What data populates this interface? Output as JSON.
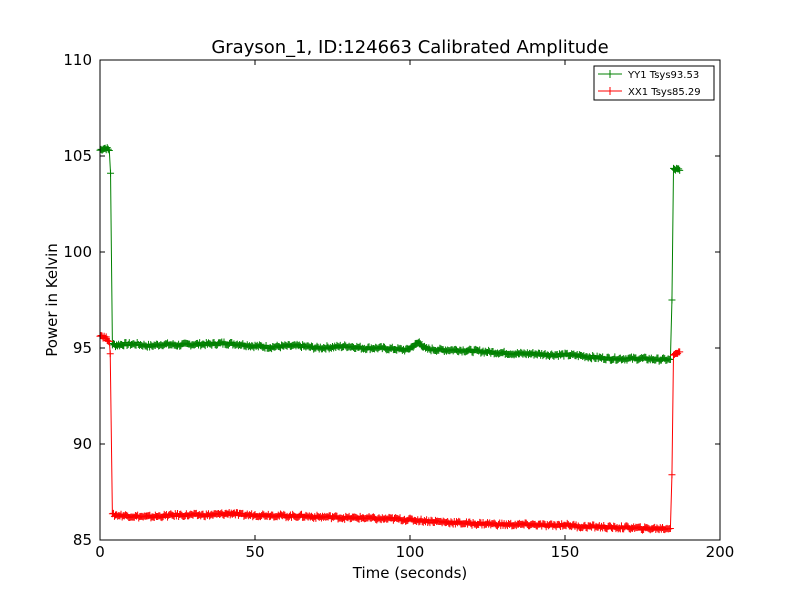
{
  "chart_data": {
    "type": "line",
    "title": "Grayson_1, ID:124663 Calibrated Amplitude",
    "xlabel": "Time (seconds)",
    "ylabel": "Power in Kelvin",
    "xlim": [
      0,
      200
    ],
    "ylim": [
      85,
      110
    ],
    "xticks": [
      0,
      50,
      100,
      150,
      200
    ],
    "yticks": [
      85,
      90,
      95,
      100,
      105,
      110
    ],
    "grid": false,
    "legend_position": "top-right",
    "marker": "plus",
    "series": [
      {
        "name": "YY1 Tsys93.53",
        "color": "#008000",
        "points": [
          [
            0,
            105.3
          ],
          [
            1,
            105.4
          ],
          [
            2,
            105.4
          ],
          [
            3,
            105.3
          ],
          [
            3.4,
            104.1
          ],
          [
            4,
            95.2
          ],
          [
            5,
            95.15
          ],
          [
            8,
            95.2
          ],
          [
            12,
            95.2
          ],
          [
            16,
            95.1
          ],
          [
            20,
            95.2
          ],
          [
            25,
            95.15
          ],
          [
            30,
            95.2
          ],
          [
            35,
            95.2
          ],
          [
            40,
            95.25
          ],
          [
            45,
            95.2
          ],
          [
            50,
            95.1
          ],
          [
            55,
            95.05
          ],
          [
            60,
            95.1
          ],
          [
            65,
            95.1
          ],
          [
            70,
            95.0
          ],
          [
            75,
            95.05
          ],
          [
            80,
            95.1
          ],
          [
            85,
            95.0
          ],
          [
            90,
            95.0
          ],
          [
            95,
            94.95
          ],
          [
            99,
            94.9
          ],
          [
            102,
            95.2
          ],
          [
            103,
            95.3
          ],
          [
            105,
            94.95
          ],
          [
            110,
            94.9
          ],
          [
            115,
            94.9
          ],
          [
            120,
            94.85
          ],
          [
            125,
            94.8
          ],
          [
            130,
            94.75
          ],
          [
            135,
            94.7
          ],
          [
            140,
            94.7
          ],
          [
            145,
            94.65
          ],
          [
            150,
            94.65
          ],
          [
            155,
            94.6
          ],
          [
            160,
            94.5
          ],
          [
            165,
            94.45
          ],
          [
            170,
            94.45
          ],
          [
            175,
            94.45
          ],
          [
            180,
            94.4
          ],
          [
            184,
            94.4
          ],
          [
            184.5,
            97.5
          ],
          [
            185,
            104.3
          ],
          [
            186,
            104.3
          ],
          [
            187,
            104.25
          ]
        ]
      },
      {
        "name": "XX1 Tsys85.29",
        "color": "#ff0000",
        "points": [
          [
            0,
            95.7
          ],
          [
            1,
            95.6
          ],
          [
            2,
            95.5
          ],
          [
            3,
            95.4
          ],
          [
            3.3,
            94.7
          ],
          [
            4,
            86.3
          ],
          [
            5,
            86.3
          ],
          [
            10,
            86.25
          ],
          [
            15,
            86.2
          ],
          [
            20,
            86.25
          ],
          [
            25,
            86.3
          ],
          [
            30,
            86.3
          ],
          [
            35,
            86.3
          ],
          [
            40,
            86.35
          ],
          [
            43,
            86.4
          ],
          [
            45,
            86.3
          ],
          [
            50,
            86.3
          ],
          [
            55,
            86.3
          ],
          [
            60,
            86.25
          ],
          [
            65,
            86.25
          ],
          [
            70,
            86.2
          ],
          [
            75,
            86.2
          ],
          [
            80,
            86.15
          ],
          [
            85,
            86.15
          ],
          [
            90,
            86.1
          ],
          [
            95,
            86.1
          ],
          [
            100,
            86.05
          ],
          [
            105,
            86.0
          ],
          [
            110,
            85.95
          ],
          [
            115,
            85.9
          ],
          [
            120,
            85.85
          ],
          [
            125,
            85.85
          ],
          [
            130,
            85.8
          ],
          [
            135,
            85.8
          ],
          [
            140,
            85.8
          ],
          [
            145,
            85.75
          ],
          [
            150,
            85.8
          ],
          [
            155,
            85.7
          ],
          [
            160,
            85.7
          ],
          [
            165,
            85.65
          ],
          [
            170,
            85.65
          ],
          [
            175,
            85.6
          ],
          [
            180,
            85.6
          ],
          [
            184,
            85.6
          ],
          [
            184.5,
            88.4
          ],
          [
            185,
            94.7
          ],
          [
            186,
            94.75
          ],
          [
            187,
            94.8
          ]
        ]
      }
    ]
  }
}
